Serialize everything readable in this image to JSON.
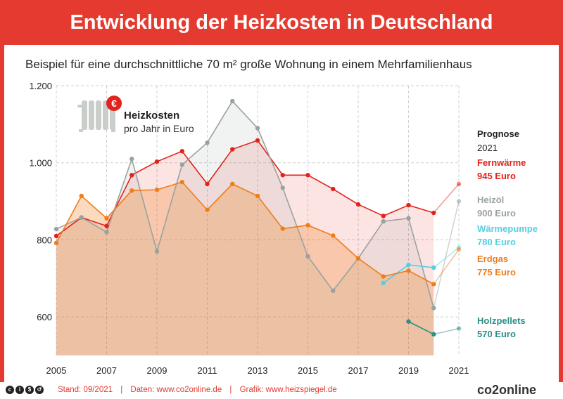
{
  "header": {
    "title": "Entwicklung der Heizkosten in Deutschland"
  },
  "subtitle": "Beispiel für eine durchschnittliche 70 m² große Wohnung in einem Mehrfamilienhaus",
  "legend_box": {
    "title": "Heizkosten",
    "subtitle": "pro Jahr in Euro",
    "badge": "€"
  },
  "prognose": {
    "title": "Prognose",
    "year": "2021"
  },
  "footer": {
    "stand": "Stand: 09/2021",
    "daten": "Daten: www.co2online.de",
    "grafik": "Grafik: www.heizspiegel.de",
    "separator": "|",
    "brand": "co2online",
    "cc_icons": [
      "cc-icon",
      "by-icon",
      "nc-icon",
      "sa-icon"
    ]
  },
  "chart_data": {
    "type": "line",
    "x": [
      2005,
      2006,
      2007,
      2008,
      2009,
      2010,
      2011,
      2012,
      2013,
      2014,
      2015,
      2016,
      2017,
      2018,
      2019,
      2020,
      2021
    ],
    "xticks": [
      "2005",
      "2007",
      "2009",
      "2011",
      "2013",
      "2015",
      "2017",
      "2019",
      "2021"
    ],
    "yticks": [
      "600",
      "800",
      "1.000",
      "1.200"
    ],
    "ylim": [
      500,
      1200
    ],
    "grid": true,
    "series": [
      {
        "name": "Fernwärme",
        "label": "945 Euro",
        "color": "#e3221b",
        "values": [
          810,
          858,
          836,
          968,
          1003,
          1030,
          945,
          1035,
          1058,
          968,
          968,
          932,
          892,
          862,
          890,
          870,
          945
        ]
      },
      {
        "name": "Heizöl",
        "label": "900 Euro",
        "color": "#9aa29f",
        "values": [
          828,
          858,
          820,
          1010,
          770,
          995,
          1052,
          1160,
          1090,
          935,
          757,
          668,
          752,
          848,
          856,
          623,
          900
        ]
      },
      {
        "name": "Wärmepumpe",
        "label": "780 Euro",
        "color": "#55cfe0",
        "values": [
          null,
          null,
          null,
          null,
          null,
          null,
          null,
          null,
          null,
          null,
          null,
          null,
          null,
          688,
          735,
          728,
          780
        ]
      },
      {
        "name": "Erdgas",
        "label": "775 Euro",
        "color": "#ee7d1c",
        "values": [
          792,
          914,
          856,
          928,
          930,
          950,
          878,
          945,
          914,
          829,
          838,
          811,
          752,
          705,
          720,
          685,
          775
        ]
      },
      {
        "name": "Holzpellets",
        "label": "570 Euro",
        "color": "#2b8f87",
        "values": [
          null,
          null,
          null,
          null,
          null,
          null,
          null,
          null,
          null,
          null,
          null,
          null,
          null,
          null,
          588,
          555,
          570
        ]
      }
    ]
  }
}
